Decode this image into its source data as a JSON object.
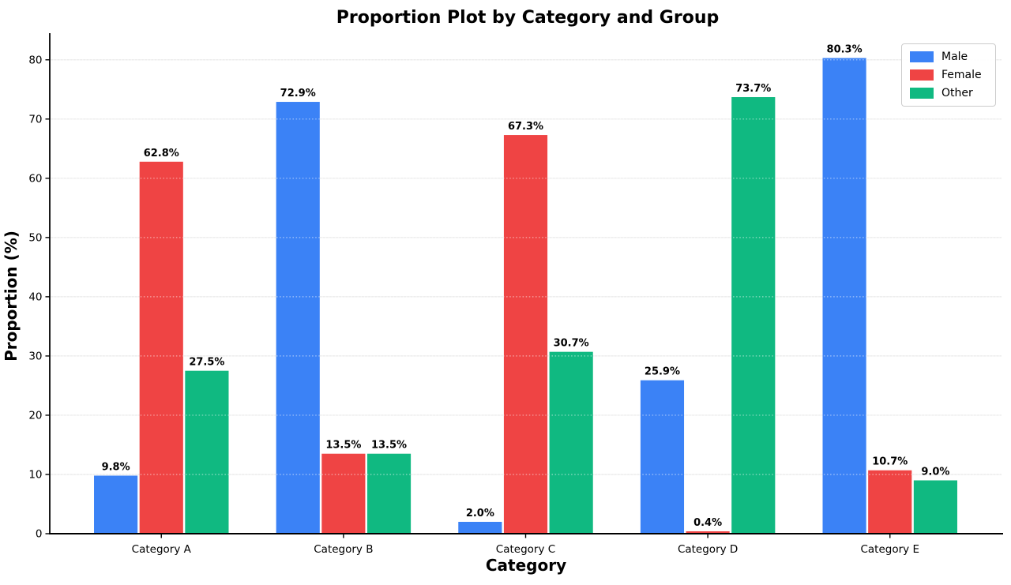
{
  "chart_data": {
    "type": "bar",
    "title": "Proportion Plot by Category and Group",
    "xlabel": "Category",
    "ylabel": "Proportion (%)",
    "categories": [
      "Category A",
      "Category B",
      "Category C",
      "Category D",
      "Category E"
    ],
    "series": [
      {
        "name": "Male",
        "color": "#3B82F6",
        "values": [
          9.8,
          72.9,
          2.0,
          25.9,
          80.3
        ]
      },
      {
        "name": "Female",
        "color": "#EF4444",
        "values": [
          62.8,
          13.5,
          67.3,
          0.4,
          10.7
        ]
      },
      {
        "name": "Other",
        "color": "#10B981",
        "values": [
          27.5,
          13.5,
          30.7,
          73.7,
          9.0
        ]
      }
    ],
    "value_label_format": "{value}%",
    "value_label_decimals": 1,
    "ylim": [
      0,
      84.5
    ],
    "yticks": [
      0,
      10,
      20,
      30,
      40,
      50,
      60,
      70,
      80
    ],
    "grid": "horizontal",
    "gridline_color": "#E8E8E8",
    "legend": {
      "position": "upper-right"
    },
    "background": "#FFFFFF",
    "text_color": "#000000"
  }
}
